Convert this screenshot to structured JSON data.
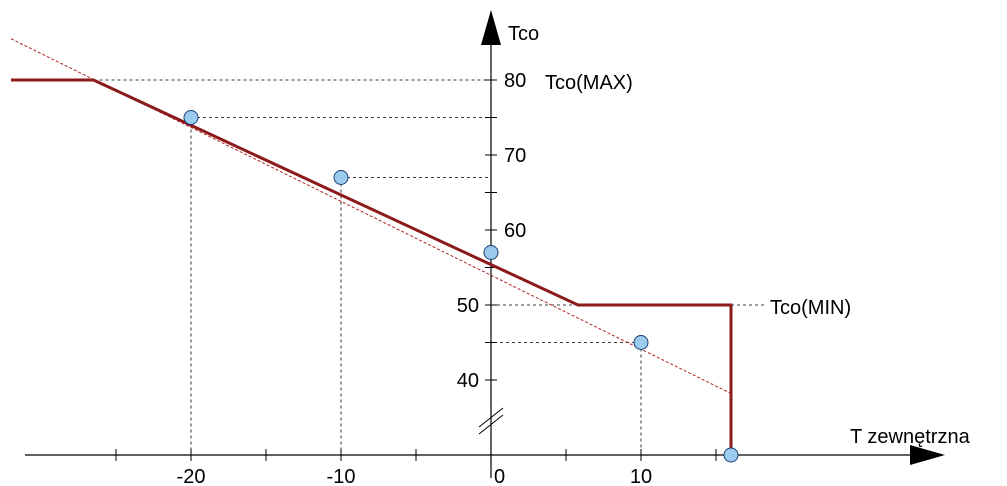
{
  "chart_data": {
    "type": "line",
    "xlabel": "T zewnętrzna",
    "ylabel": "Tco",
    "x_ticks": [
      -20,
      -10,
      0,
      10
    ],
    "x_tick_labels": [
      "-20",
      "-10",
      "0",
      "10"
    ],
    "y_ticks": [
      40,
      50,
      60,
      70,
      80
    ],
    "y_tick_labels": [
      "40",
      "50",
      "60",
      "70",
      "80"
    ],
    "annotations": {
      "max_label": "Tco(MAX)",
      "min_label": "Tco(MIN)"
    },
    "y_break": true,
    "grid": false,
    "series": [
      {
        "points": [
          [
            -32,
            80
          ],
          [
            -26.5,
            80
          ],
          [
            5.8,
            50
          ],
          [
            16,
            50
          ],
          [
            16,
            30
          ]
        ],
        "color": "#8b1a1a"
      }
    ],
    "extension_line": {
      "points": [
        [
          -32,
          85.5
        ],
        [
          16,
          38.2
        ]
      ],
      "color": "#b22222"
    },
    "markers": [
      {
        "x": -20,
        "y": 75
      },
      {
        "x": -10,
        "y": 67
      },
      {
        "x": 0,
        "y": 57
      },
      {
        "x": 10,
        "y": 45
      },
      {
        "x": 16,
        "y": 30
      }
    ],
    "guide_lines": [
      {
        "x": -20,
        "y": 75
      },
      {
        "x": -10,
        "y": 67
      },
      {
        "x": 10,
        "y": 45
      }
    ],
    "max_value": 80,
    "min_value": 50,
    "marker_color": "#9ccbf0",
    "axis_color": "#000000"
  }
}
